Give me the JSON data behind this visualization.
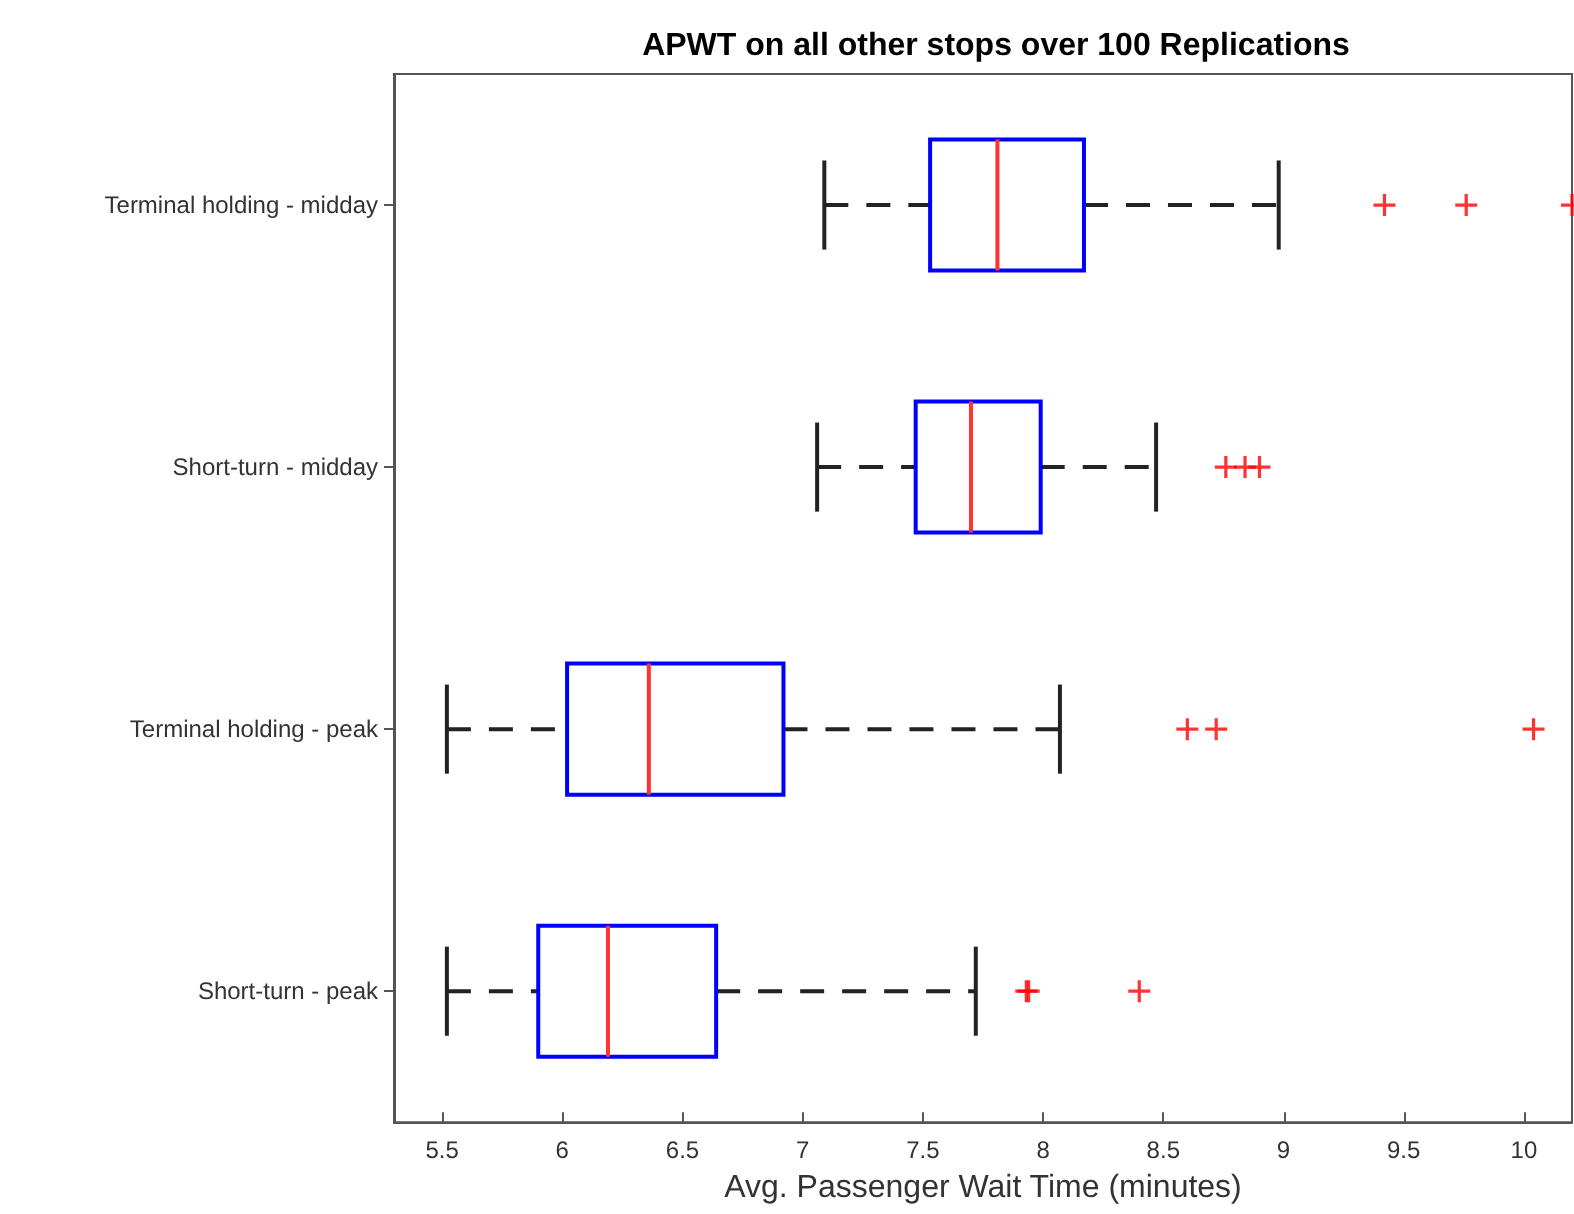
{
  "chart_data": {
    "type": "box",
    "orientation": "horizontal",
    "title": "APWT on all other stops over 100 Replications",
    "xlabel": "Avg. Passenger Wait Time (minutes)",
    "categories": [
      "Terminal holding - midday",
      "Short-turn - midday",
      "Terminal holding - peak",
      "Short-turn - peak"
    ],
    "series": [
      {
        "color": "#0000ff",
        "boxes": [
          {
            "low": 7.09,
            "q1": 7.53,
            "median": 7.81,
            "q3": 8.17,
            "high": 8.98,
            "outliers": [
              9.42,
              9.76,
              10.2
            ]
          },
          {
            "low": 7.06,
            "q1": 7.47,
            "median": 7.7,
            "q3": 7.99,
            "high": 8.47,
            "outliers": [
              8.76,
              8.84,
              8.9
            ]
          },
          {
            "low": 5.52,
            "q1": 6.02,
            "median": 6.36,
            "q3": 6.92,
            "high": 8.07,
            "outliers": [
              8.6,
              8.72,
              10.04
            ]
          },
          {
            "low": 5.52,
            "q1": 5.9,
            "median": 6.19,
            "q3": 6.64,
            "high": 7.72,
            "outliers": [
              7.93,
              7.94,
              8.4
            ]
          }
        ]
      }
    ],
    "xlim": [
      5.3,
      10.2
    ],
    "xticks": [
      5.5,
      6,
      6.5,
      7,
      7.5,
      8,
      8.5,
      9,
      9.5,
      10
    ]
  }
}
